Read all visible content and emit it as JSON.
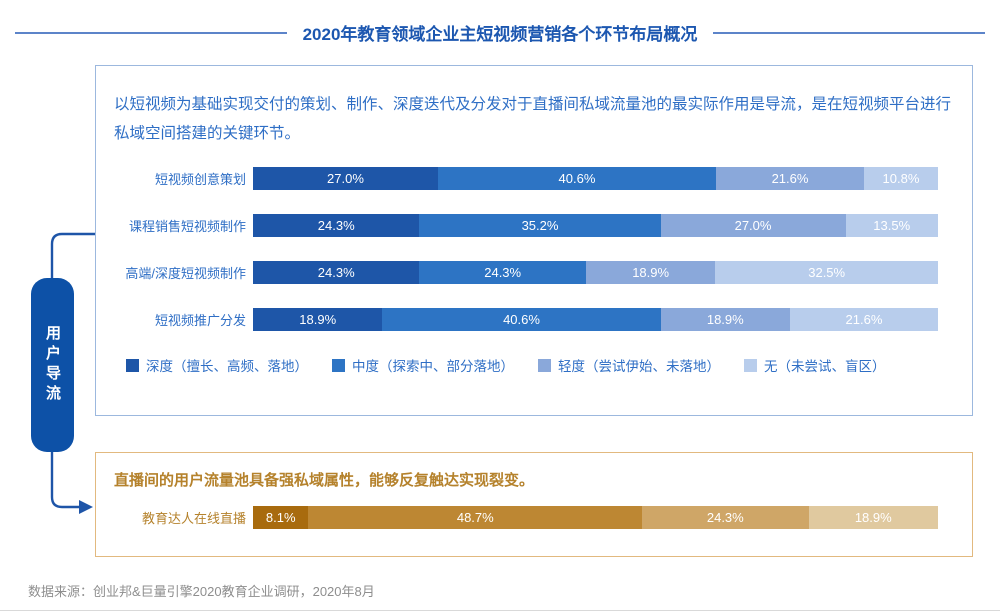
{
  "title": "2020年教育领域企业主短视频营销各个环节布局概况",
  "main_panel": {
    "intro": "以短视频为基础实现交付的策划、制作、深度迭代及分发对于直播间私域流量池的最实际作用是导流，是在短视频平台进行私域空间搭建的关键环节。"
  },
  "flow": {
    "label": "用户导流"
  },
  "live_panel": {
    "heading": "直播间的用户流量池具备强私域属性，能够反复触达实现裂变。"
  },
  "source": "数据来源：创业邦&巨量引擎2020教育企业调研，2020年8月",
  "colors": {
    "title_blue": "#1c57b0",
    "body_blue": "#2e6ec5",
    "panel_border_blue": "#9cb8de",
    "panel_border_gold": "#e2b97f",
    "gold_text": "#b5822c",
    "pill_blue": "#0d51a7",
    "connector_blue": "#1e55a8",
    "source_gray": "#8e8e8e"
  },
  "chart_data": [
    {
      "type": "bar",
      "subtype": "horizontal-stacked",
      "title": "",
      "unit": "%",
      "xlim": [
        0,
        100
      ],
      "legend_position": "bottom",
      "categories": [
        "短视频创意策划",
        "课程销售短视频制作",
        "高端/深度短视频制作",
        "短视频推广分发"
      ],
      "series": [
        {
          "name": "深度（擅长、高频、落地）",
          "color": "#1e56a8",
          "values": [
            27.0,
            24.3,
            24.3,
            18.9
          ]
        },
        {
          "name": "中度（探索中、部分落地）",
          "color": "#2d74c4",
          "values": [
            40.6,
            35.2,
            24.3,
            40.6
          ]
        },
        {
          "name": "轻度（尝试伊始、未落地）",
          "color": "#8aa8da",
          "values": [
            21.6,
            27.0,
            18.9,
            18.9
          ]
        },
        {
          "name": "无（未尝试、盲区）",
          "color": "#b8cdec",
          "values": [
            10.8,
            13.5,
            32.5,
            21.6
          ]
        }
      ]
    },
    {
      "type": "bar",
      "subtype": "horizontal-stacked",
      "title": "",
      "unit": "%",
      "xlim": [
        0,
        100
      ],
      "legend_position": "none",
      "categories": [
        "教育达人在线直播"
      ],
      "series": [
        {
          "name": "深度",
          "color": "#a86b0e",
          "values": [
            8.1
          ]
        },
        {
          "name": "中度",
          "color": "#bd8733",
          "values": [
            48.7
          ]
        },
        {
          "name": "轻度",
          "color": "#cfa667",
          "values": [
            24.3
          ]
        },
        {
          "name": "无",
          "color": "#e0c99f",
          "values": [
            18.9
          ]
        }
      ]
    }
  ]
}
